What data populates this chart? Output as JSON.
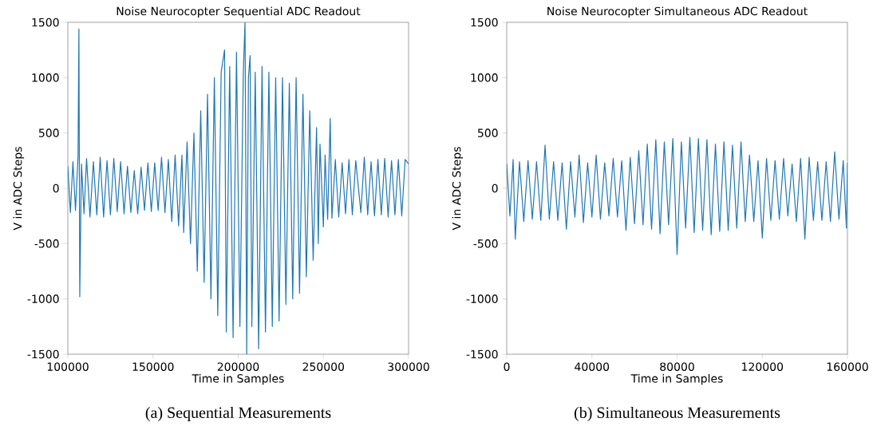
{
  "chart_data": [
    {
      "type": "line",
      "title": "Noise Neurocopter Sequential ADC Readout",
      "xlabel": "Time in Samples",
      "ylabel": "V in ADC Steps",
      "color": "#1f77b4",
      "xlim": [
        100000,
        300000
      ],
      "ylim": [
        -1500,
        1500
      ],
      "xticks": [
        100000,
        150000,
        200000,
        250000,
        300000
      ],
      "yticks": [
        -1500,
        -1000,
        -500,
        0,
        500,
        1000,
        1500
      ],
      "x": [
        100000,
        101500,
        103000,
        104500,
        106000,
        106500,
        107000,
        108000,
        109500,
        111000,
        113000,
        115000,
        117000,
        119000,
        121000,
        123000,
        125000,
        127000,
        129000,
        131000,
        133000,
        135000,
        137000,
        139000,
        141000,
        143000,
        145000,
        147000,
        149000,
        151000,
        153000,
        155000,
        157000,
        159000,
        161000,
        163000,
        165000,
        167000,
        168000,
        170000,
        172000,
        174000,
        176000,
        178000,
        180000,
        182000,
        184000,
        186000,
        188000,
        190000,
        192000,
        193000,
        195000,
        197000,
        199000,
        201000,
        203000,
        204000,
        205000,
        206000,
        207000,
        208000,
        210000,
        212000,
        214000,
        216000,
        218000,
        220000,
        222000,
        224000,
        226000,
        228000,
        230000,
        232000,
        234000,
        236000,
        238000,
        240000,
        242000,
        244000,
        246000,
        247000,
        248000,
        250000,
        251000,
        252500,
        254000,
        255000,
        257000,
        259000,
        261000,
        263000,
        265000,
        267000,
        269000,
        272000,
        274000,
        276000,
        278000,
        280000,
        282000,
        284000,
        286000,
        288000,
        290000,
        292000,
        294000,
        296000,
        298000,
        300000
      ],
      "values": [
        200,
        -220,
        240,
        -200,
        290,
        1440,
        -980,
        220,
        -230,
        270,
        -260,
        240,
        -240,
        280,
        -260,
        250,
        -240,
        270,
        -210,
        240,
        -230,
        200,
        -220,
        160,
        -230,
        190,
        -200,
        230,
        -210,
        230,
        -200,
        280,
        -220,
        260,
        -300,
        300,
        -340,
        300,
        -400,
        420,
        -500,
        500,
        -750,
        700,
        -850,
        850,
        -1000,
        1000,
        -1150,
        1050,
        1250,
        -1300,
        1100,
        -1350,
        1230,
        -1250,
        1050,
        1500,
        -1500,
        1000,
        1200,
        -1250,
        1050,
        -1450,
        1100,
        -1300,
        1050,
        -1250,
        1000,
        -1200,
        1000,
        -1050,
        950,
        -1000,
        1000,
        -950,
        850,
        -800,
        700,
        -650,
        550,
        -500,
        400,
        -350,
        300,
        -280,
        630,
        -270,
        260,
        -260,
        230,
        -230,
        260,
        -240,
        250,
        -220,
        280,
        -240,
        240,
        -250,
        260,
        -240,
        270,
        -260,
        250,
        -240,
        260,
        -250,
        260,
        220
      ],
      "annotations": [
        "(a) Sequential Measurements"
      ]
    },
    {
      "type": "line",
      "title": "Noise Neurocopter Simultaneous ADC Readout",
      "xlabel": "Time in Samples",
      "ylabel": "V in ADC Steps",
      "color": "#1f77b4",
      "xlim": [
        0,
        160000
      ],
      "ylim": [
        -1500,
        1500
      ],
      "xticks": [
        0,
        40000,
        80000,
        120000,
        160000
      ],
      "yticks": [
        -1500,
        -1000,
        -500,
        0,
        500,
        1000,
        1500
      ],
      "x": [
        0,
        1500,
        3000,
        4000,
        6000,
        8000,
        10000,
        12000,
        14000,
        16000,
        18000,
        20000,
        22000,
        24000,
        26000,
        28000,
        30000,
        32000,
        34000,
        36000,
        38000,
        40000,
        42000,
        44000,
        46000,
        48000,
        50000,
        52000,
        54000,
        56000,
        58000,
        60000,
        62000,
        64000,
        66000,
        68000,
        70000,
        72000,
        74000,
        76000,
        78000,
        80000,
        82000,
        84000,
        86000,
        88000,
        90000,
        92000,
        94000,
        96000,
        98000,
        100000,
        102000,
        104000,
        106000,
        108000,
        110000,
        112000,
        114000,
        116000,
        118000,
        120000,
        122000,
        124000,
        126000,
        128000,
        130000,
        132000,
        134000,
        136000,
        138000,
        140000,
        142000,
        144000,
        146000,
        148000,
        150000,
        152000,
        154000,
        156000,
        158000,
        159500,
        160000
      ],
      "values": [
        220,
        -250,
        260,
        -460,
        240,
        -300,
        250,
        -280,
        240,
        -290,
        390,
        -280,
        240,
        -290,
        230,
        -370,
        240,
        -260,
        300,
        -310,
        230,
        -260,
        300,
        -280,
        230,
        -250,
        270,
        -260,
        250,
        -380,
        280,
        -320,
        340,
        -330,
        400,
        -370,
        440,
        -410,
        420,
        -330,
        450,
        -600,
        420,
        -360,
        460,
        -400,
        450,
        -380,
        440,
        -420,
        400,
        -390,
        420,
        -380,
        390,
        -360,
        420,
        -300,
        300,
        -300,
        250,
        -450,
        270,
        -290,
        250,
        -280,
        270,
        -250,
        220,
        -300,
        270,
        -460,
        280,
        -290,
        240,
        -290,
        240,
        -300,
        330,
        -280,
        250,
        -360,
        230
      ],
      "annotations": [
        "(b) Simultaneous Measurements"
      ]
    }
  ]
}
